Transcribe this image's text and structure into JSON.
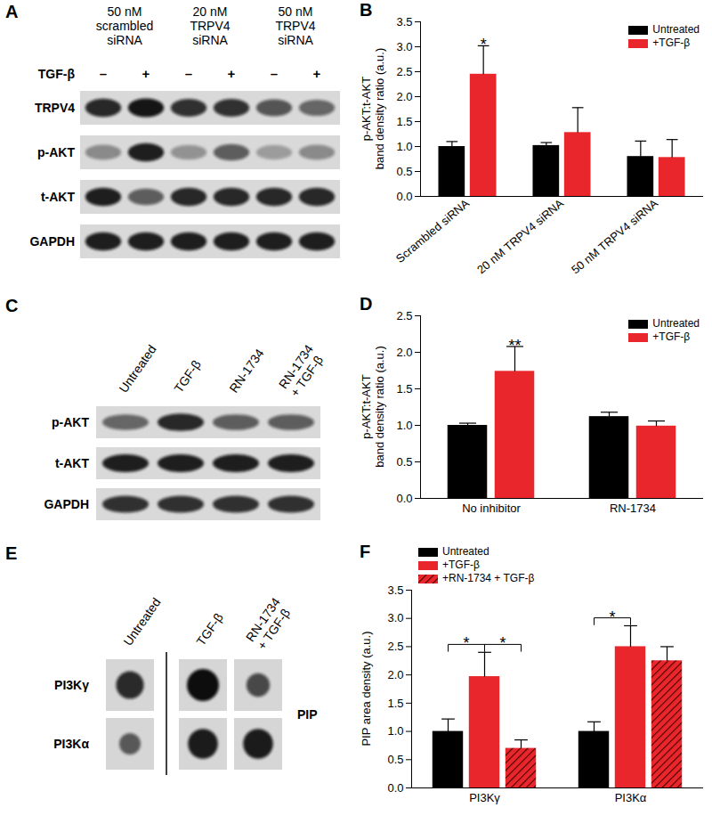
{
  "chart_data": [
    {
      "type": "bar",
      "title": "B",
      "ylabel": "p-AKT:t-AKT\nband density ratio (a.u.)",
      "categories": [
        "Scrambled siRNA",
        "20 nM TRPV4 siRNA",
        "50 nM TRPV4 siRNA"
      ],
      "series": [
        {
          "name": "Untreated",
          "color": "#000000",
          "values": [
            1.0,
            1.02,
            0.8
          ],
          "errors": [
            0.1,
            0.06,
            0.31
          ]
        },
        {
          "name": "+TGF-β",
          "color": "#e8262b",
          "values": [
            2.45,
            1.28,
            0.78
          ],
          "errors": [
            0.57,
            0.5,
            0.36
          ]
        }
      ],
      "ylim": [
        0,
        3.5
      ],
      "yticks": [
        {
          "value": 0,
          "label": "0.0"
        },
        0.5,
        {
          "value": 1,
          "label": "1.0"
        },
        1.5,
        {
          "value": 2,
          "label": "2.0"
        },
        2.5,
        {
          "value": 3,
          "label": "3.0"
        },
        3.5
      ],
      "legend": "top-right",
      "annotations": [
        {
          "text": "*",
          "category": "Scrambled siRNA",
          "series": "+TGF-β"
        }
      ]
    },
    {
      "type": "bar",
      "title": "D",
      "ylabel": "p-AKT:t-AKT\nband density ratio (a.u.)",
      "categories": [
        "No inhibitor",
        "RN-1734"
      ],
      "series": [
        {
          "name": "Untreated",
          "color": "#000000",
          "values": [
            1.0,
            1.12
          ],
          "errors": [
            0.03,
            0.06
          ]
        },
        {
          "name": "+TGF-β",
          "color": "#e8262b",
          "values": [
            1.74,
            0.99
          ],
          "errors": [
            0.34,
            0.07
          ]
        }
      ],
      "ylim": [
        0,
        2.5
      ],
      "yticks": [
        {
          "value": 0,
          "label": "0.0"
        },
        0.5,
        {
          "value": 1,
          "label": "1.0"
        },
        1.5,
        {
          "value": 2,
          "label": "2.0"
        },
        2.5
      ],
      "legend": "top-right",
      "annotations": [
        {
          "text": "**",
          "category": "No inhibitor",
          "series": "+TGF-β"
        }
      ]
    },
    {
      "type": "bar",
      "title": "F",
      "ylabel": "PIP area density (a.u.)",
      "categories": [
        "PI3Kγ",
        "PI3Kα"
      ],
      "series": [
        {
          "name": "Untreated",
          "color": "#000000",
          "values": [
            1.0,
            1.0
          ],
          "errors": [
            0.22,
            0.17
          ]
        },
        {
          "name": "+TGF-β",
          "color": "#e8262b",
          "values": [
            1.97,
            2.5
          ],
          "errors": [
            0.43,
            0.37
          ]
        },
        {
          "name": "+RN-1734 + TGF-β",
          "color": "#e8262b",
          "line_style": "hatched",
          "values": [
            0.7,
            2.25
          ],
          "errors": [
            0.15,
            0.25
          ]
        }
      ],
      "ylim": [
        0,
        3.5
      ],
      "yticks": [
        {
          "value": 0,
          "label": "0.0"
        },
        0.5,
        {
          "value": 1,
          "label": "1.0"
        },
        1.5,
        {
          "value": 2,
          "label": "2.0"
        },
        2.5,
        {
          "value": 3,
          "label": "3.0"
        },
        3.5
      ],
      "legend": "top-left",
      "annotations": [
        {
          "text": "*",
          "category": "PI3Kγ",
          "series": [
            "Untreated",
            "+TGF-β"
          ]
        },
        {
          "text": "*",
          "category": "PI3Kγ",
          "series": [
            "+TGF-β",
            "+RN-1734 + TGF-β"
          ]
        },
        {
          "text": "*",
          "category": "PI3Kα",
          "series": [
            "Untreated",
            "+TGF-β"
          ]
        }
      ]
    }
  ],
  "blots": [
    {
      "panel": "A",
      "type": "western blot",
      "groups": [
        "50 nM\nscrambled\nsiRNA",
        "20 nM\nTRPV4\nsiRNA",
        "50 nM\nTRPV4\nsiRNA"
      ],
      "treatment": {
        "label": "TGF-β",
        "signs": [
          "–",
          "+",
          "–",
          "+",
          "–",
          "+"
        ]
      },
      "rows": [
        {
          "label": "TRPV4",
          "intensity": [
            0.85,
            0.95,
            0.8,
            0.8,
            0.6,
            0.5
          ]
        },
        {
          "label": "p-AKT",
          "intensity": [
            0.3,
            0.9,
            0.25,
            0.55,
            0.2,
            0.3
          ]
        },
        {
          "label": "t-AKT",
          "intensity": [
            0.9,
            0.55,
            0.85,
            0.85,
            0.85,
            0.85
          ]
        },
        {
          "label": "GAPDH",
          "intensity": [
            0.9,
            0.9,
            0.9,
            0.9,
            0.9,
            0.9
          ]
        }
      ]
    },
    {
      "panel": "C",
      "type": "western blot",
      "lanes": [
        "Untreated",
        "TGF-β",
        "RN-1734",
        "RN-1734\n+ TGF-β"
      ],
      "rows": [
        {
          "label": "p-AKT",
          "intensity": [
            0.5,
            0.85,
            0.55,
            0.55
          ]
        },
        {
          "label": "t-AKT",
          "intensity": [
            0.9,
            0.9,
            0.9,
            0.9
          ]
        },
        {
          "label": "GAPDH",
          "intensity": [
            0.8,
            0.8,
            0.8,
            0.8
          ]
        }
      ]
    },
    {
      "panel": "E",
      "type": "dot blot",
      "lanes": [
        "Untreated",
        "TGF-β",
        "RN-1734\n+ TGF-β"
      ],
      "side_label": "PIP",
      "rows": [
        {
          "label": "PI3Kγ",
          "intensity": [
            0.8,
            1.0,
            0.6
          ]
        },
        {
          "label": "PI3Kα",
          "intensity": [
            0.5,
            0.9,
            0.9
          ]
        }
      ]
    }
  ]
}
